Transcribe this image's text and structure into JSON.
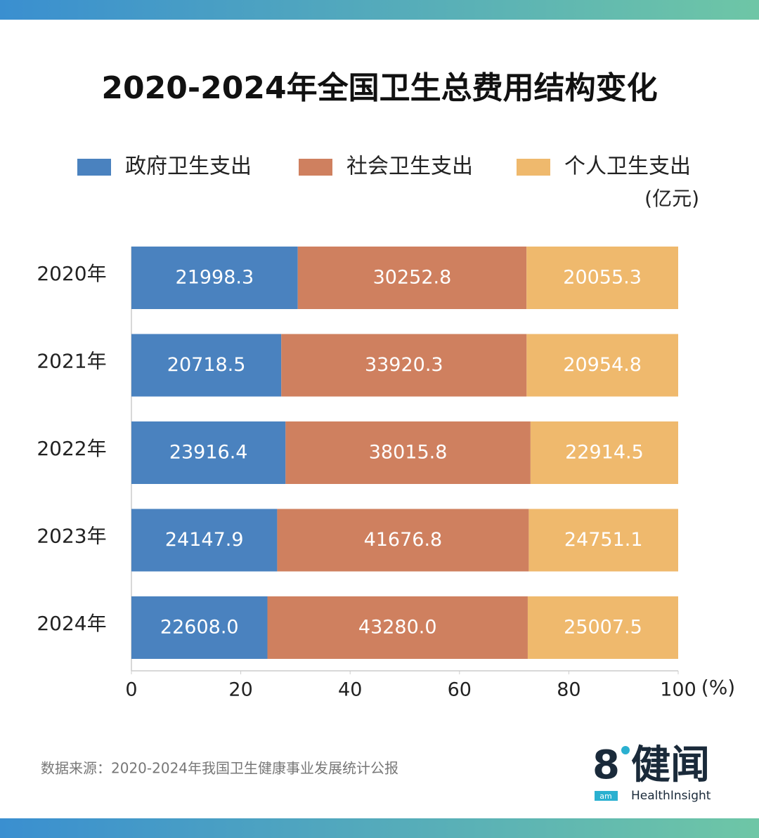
{
  "chart_data": {
    "type": "stacked-percent-barh",
    "title": "2020-2024年全国卫生总费用结构变化",
    "unit": "(亿元)",
    "x_label": "(%)",
    "categories": [
      "2020年",
      "2021年",
      "2022年",
      "2023年",
      "2024年"
    ],
    "series": [
      {
        "name": "政府卫生支出",
        "color": "#4a82bf",
        "values": [
          21998.3,
          20718.5,
          23916.4,
          24147.9,
          22608.0
        ],
        "value_labels": [
          "21998.3",
          "20718.5",
          "23916.4",
          "24147.9",
          "22608.0"
        ]
      },
      {
        "name": "社会卫生支出",
        "color": "#cf805f",
        "values": [
          30252.8,
          33920.3,
          38015.8,
          41676.8,
          43280.0
        ],
        "value_labels": [
          "30252.8",
          "33920.3",
          "38015.8",
          "41676.8",
          "43280.0"
        ]
      },
      {
        "name": "个人卫生支出",
        "color": "#efb96d",
        "values": [
          20055.3,
          20954.8,
          22914.5,
          24751.1,
          25007.5
        ],
        "value_labels": [
          "20055.3",
          "20954.8",
          "22914.5",
          "24751.1",
          "25007.5"
        ]
      }
    ],
    "xlim": [
      0,
      100
    ],
    "xticks": [
      0,
      20,
      40,
      60,
      80,
      100
    ],
    "source": "数据来源：2020-2024年我国卫生健康事业发展统计公报",
    "logo": {
      "mark": "8",
      "badge": "am",
      "name": "健闻",
      "sub": "HealthInsight"
    }
  }
}
